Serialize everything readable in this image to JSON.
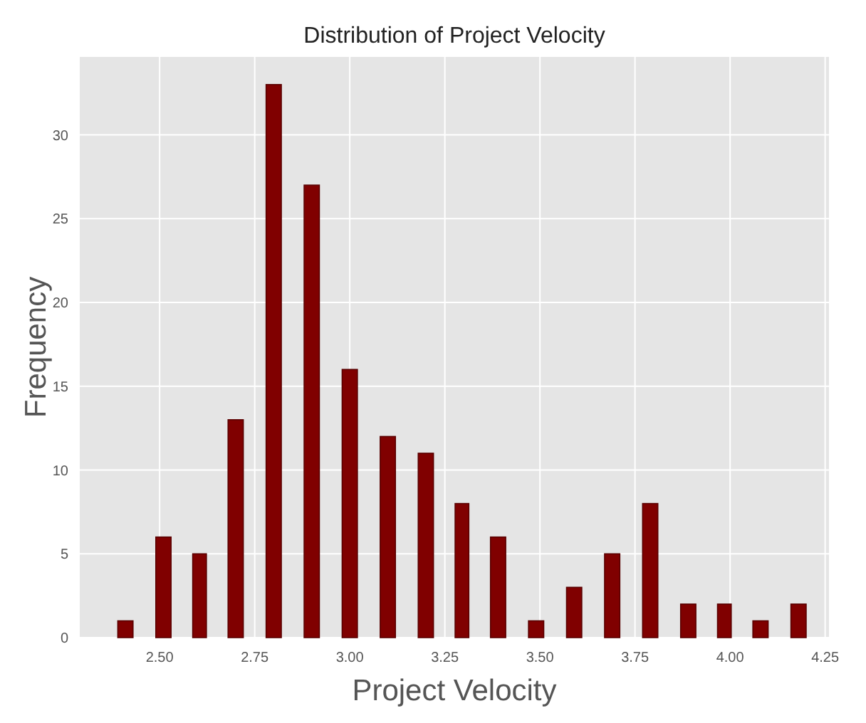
{
  "chart_data": {
    "type": "histogram",
    "title": "Distribution of Project Velocity",
    "xlabel": "Project Velocity",
    "ylabel": "Frequency",
    "bins": [
      2.36,
      2.46,
      2.56,
      2.65,
      2.75,
      2.85,
      2.95,
      3.05,
      3.15,
      3.25,
      3.34,
      3.44,
      3.54,
      3.64,
      3.74,
      3.84,
      3.94,
      4.03,
      4.13,
      4.23
    ],
    "values": [
      1,
      6,
      5,
      13,
      33,
      27,
      16,
      12,
      11,
      8,
      6,
      1,
      3,
      5,
      8,
      2,
      2,
      1,
      2
    ],
    "color": "#800000",
    "xlim": [
      2.29,
      4.26
    ],
    "xticks": [
      {
        "value": 2.5,
        "label": "2.50"
      },
      {
        "value": 2.75,
        "label": "2.75"
      },
      {
        "value": 3,
        "label": "3.00"
      },
      {
        "value": 3.25,
        "label": "3.25"
      },
      {
        "value": 3.5,
        "label": "3.50"
      },
      {
        "value": 3.75,
        "label": "3.75"
      },
      {
        "value": 4,
        "label": "4.00"
      },
      {
        "value": 4.25,
        "label": "4.25"
      }
    ],
    "ylim": [
      0,
      34.65
    ],
    "yticks": [
      0,
      5,
      10,
      15,
      20,
      25,
      30
    ],
    "grid": true
  }
}
